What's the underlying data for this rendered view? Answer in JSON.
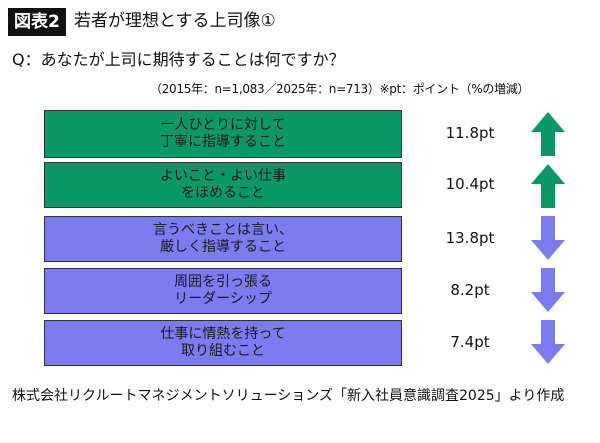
{
  "header": {
    "badge": "図表2",
    "title": "若者が理想とする上司像①"
  },
  "question": "Q：あなたが上司に期待することは何ですか？",
  "note": "（2015年：n=1,083／2025年：n=713）※pt：ポイント（%の増減）",
  "chart_data": {
    "type": "table",
    "categories": [
      "一人ひとりに対して\n丁寧に指導すること",
      "よいこと・よい仕事\nをほめること",
      "言うべきことは言い、\n厳しく指導すること",
      "周囲を引っ張る\nリーダーシップ",
      "仕事に情熱を持って\n取り組むこと"
    ],
    "labels": [
      "11.8pt",
      "10.4pt",
      "13.8pt",
      "8.2pt",
      "7.4pt"
    ],
    "values": [
      11.8,
      10.4,
      -13.8,
      -8.2,
      -7.4
    ],
    "directions": [
      "up",
      "up",
      "down",
      "down",
      "down"
    ],
    "colors": {
      "up": "#0a9966",
      "down": "#7b7cf2"
    }
  },
  "source": "株式会社リクルートマネジメントソリューションズ「新入社員意識調査2025」より作成"
}
